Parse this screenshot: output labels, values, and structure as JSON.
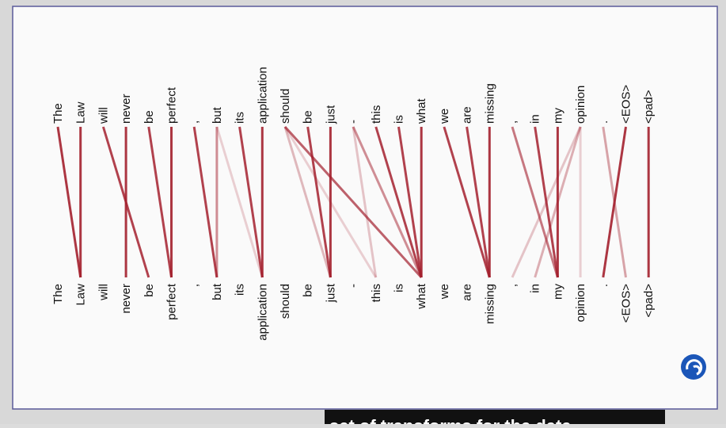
{
  "top_tokens": [
    "The",
    "Law",
    "will",
    "never",
    "be",
    "perfect",
    ",",
    "but",
    "its",
    "application",
    "should",
    "be",
    "just",
    "-",
    "this",
    "is",
    "what",
    "we",
    "are",
    "missing",
    ",",
    "in",
    "my",
    "opinion",
    ".",
    "<EOS>",
    "<pad>"
  ],
  "bottom_tokens": [
    "The",
    "Law",
    "will",
    "never",
    "be",
    "perfect",
    ",",
    "but",
    "its",
    "application",
    "should",
    "be",
    "just",
    "-",
    "this",
    "is",
    "what",
    "we",
    "are",
    "missing",
    ",",
    "in",
    "my",
    "opinion",
    ".",
    "<EOS>",
    "<pad>"
  ],
  "attention": [
    {
      "from": 0,
      "to": 1,
      "weight": 0.9
    },
    {
      "from": 1,
      "to": 1,
      "weight": 0.9
    },
    {
      "from": 2,
      "to": 4,
      "weight": 0.85
    },
    {
      "from": 3,
      "to": 3,
      "weight": 0.9
    },
    {
      "from": 4,
      "to": 5,
      "weight": 0.85
    },
    {
      "from": 5,
      "to": 5,
      "weight": 0.9
    },
    {
      "from": 6,
      "to": 7,
      "weight": 0.85
    },
    {
      "from": 7,
      "to": 7,
      "weight": 0.5
    },
    {
      "from": 7,
      "to": 9,
      "weight": 0.2
    },
    {
      "from": 8,
      "to": 9,
      "weight": 0.85
    },
    {
      "from": 9,
      "to": 9,
      "weight": 0.9
    },
    {
      "from": 10,
      "to": 16,
      "weight": 0.7
    },
    {
      "from": 10,
      "to": 12,
      "weight": 0.3
    },
    {
      "from": 10,
      "to": 14,
      "weight": 0.2
    },
    {
      "from": 11,
      "to": 12,
      "weight": 0.85
    },
    {
      "from": 12,
      "to": 12,
      "weight": 0.9
    },
    {
      "from": 13,
      "to": 16,
      "weight": 0.5
    },
    {
      "from": 13,
      "to": 14,
      "weight": 0.25
    },
    {
      "from": 14,
      "to": 16,
      "weight": 0.85
    },
    {
      "from": 15,
      "to": 16,
      "weight": 0.85
    },
    {
      "from": 16,
      "to": 16,
      "weight": 0.9
    },
    {
      "from": 17,
      "to": 19,
      "weight": 0.85
    },
    {
      "from": 18,
      "to": 19,
      "weight": 0.85
    },
    {
      "from": 19,
      "to": 19,
      "weight": 0.9
    },
    {
      "from": 20,
      "to": 22,
      "weight": 0.6
    },
    {
      "from": 21,
      "to": 22,
      "weight": 0.85
    },
    {
      "from": 22,
      "to": 22,
      "weight": 0.9
    },
    {
      "from": 23,
      "to": 21,
      "weight": 0.35
    },
    {
      "from": 23,
      "to": 20,
      "weight": 0.25
    },
    {
      "from": 23,
      "to": 23,
      "weight": 0.2
    },
    {
      "from": 24,
      "to": 25,
      "weight": 0.4
    },
    {
      "from": 25,
      "to": 24,
      "weight": 0.9
    },
    {
      "from": 26,
      "to": 26,
      "weight": 0.9
    }
  ],
  "subtitle": "set of transforms for the data"
}
